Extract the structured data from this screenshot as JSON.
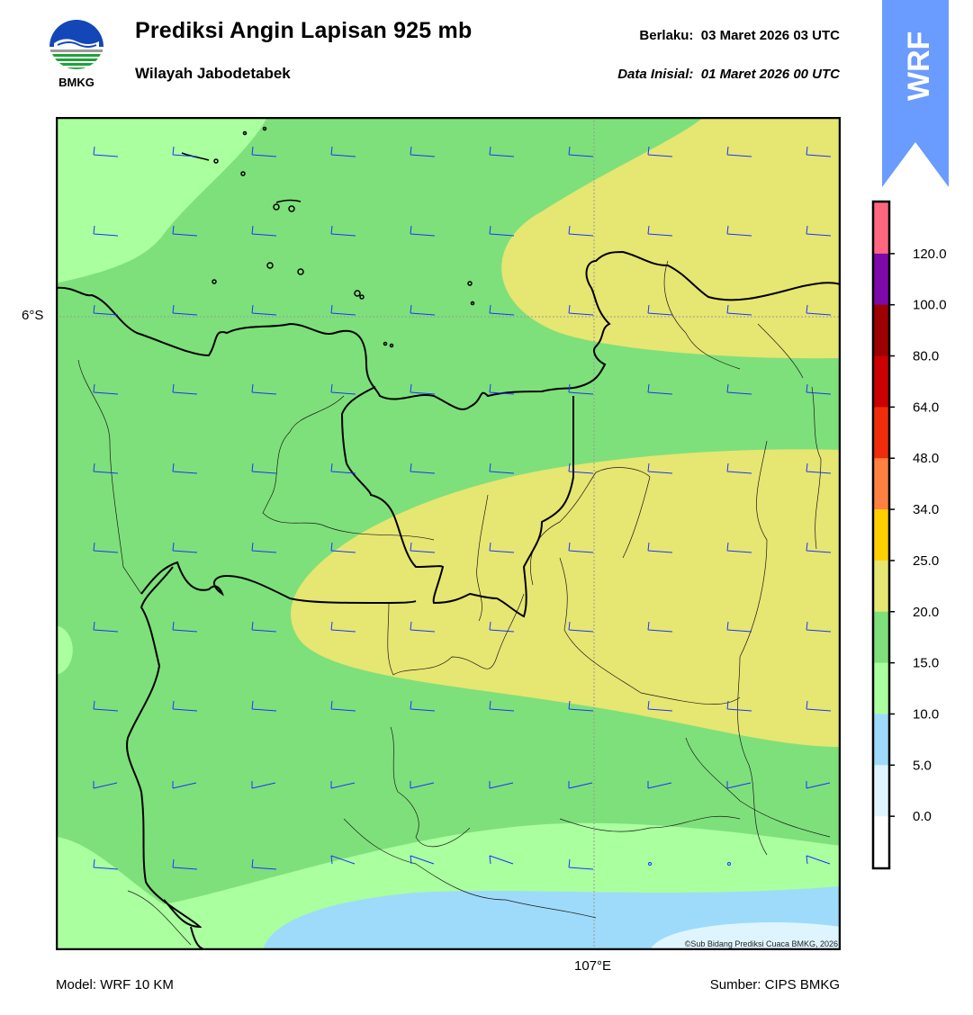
{
  "header": {
    "logo_text": "BMKG",
    "title": "Prediksi Angin Lapisan 925 mb",
    "subtitle": "Wilayah Jabodetabek",
    "valid": "Berlaku:  03 Maret 2026 03 UTC",
    "initial": "Data Inisial:  01 Maret 2026 00 UTC",
    "badge": "WRF"
  },
  "map": {
    "lat_label": "6°S",
    "lon_label": "107°E",
    "copyright": "©Sub Bidang Prediksi Cuaca BMKG, 2026",
    "colors": {
      "light_green": "#aaff9f",
      "green": "#7ee07a",
      "yellow": "#e6e672",
      "light_blue": "#9edbfa",
      "pale_blue": "#def5ff",
      "barb": "#1a33ff"
    }
  },
  "colorbar": {
    "labels": [
      "120.0",
      "100.0",
      "80.0",
      "64.0",
      "48.0",
      "34.0",
      "25.0",
      "20.0",
      "15.0",
      "10.0",
      "5.0",
      "0.0"
    ],
    "colors": [
      "#ff6680",
      "#7d0aa8",
      "#9c0000",
      "#cc0000",
      "#f02c0a",
      "#ff8040",
      "#ffd000",
      "#e6e672",
      "#7ee07a",
      "#aaff9f",
      "#9edbfa",
      "#def5ff",
      "#ffffff"
    ]
  },
  "footer": {
    "model": "Model: WRF 10 KM",
    "source": "Sumber: CIPS BMKG"
  }
}
